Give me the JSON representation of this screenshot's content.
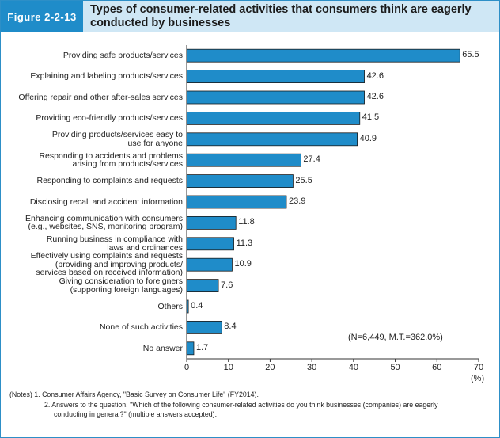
{
  "figure": {
    "label": "Figure 2-2-13",
    "title": "Types of consumer-related activities that consumers think are eagerly conducted by businesses"
  },
  "chart_data": {
    "type": "bar",
    "orientation": "horizontal",
    "categories": [
      "Providing safe products/services",
      "Explaining and labeling products/services",
      "Offering repair and other after-sales services",
      "Providing eco-friendly products/services",
      "Providing products/services easy to use for anyone",
      "Responding to accidents and problems arising from products/services",
      "Responding to complaints and requests",
      "Disclosing recall and accident information",
      "Enhancing communication with consumers (e.g., websites, SNS, monitoring program)",
      "Running business in compliance with laws and ordinances",
      "Effectively using complaints and requests (providing and improving products/services based on received information)",
      "Giving consideration to foreigners (supporting foreign languages)",
      "Others",
      "None of such activities",
      "No answer"
    ],
    "category_lines": [
      [
        "Providing safe products/services"
      ],
      [
        "Explaining and labeling products/services"
      ],
      [
        "Offering repair and other after-sales services"
      ],
      [
        "Providing eco-friendly products/services"
      ],
      [
        "Providing products/services easy to",
        "use for anyone"
      ],
      [
        "Responding to accidents and problems",
        "arising from products/services"
      ],
      [
        "Responding to complaints and requests"
      ],
      [
        "Disclosing recall and accident information"
      ],
      [
        "Enhancing communication with consumers",
        "(e.g., websites, SNS, monitoring program)"
      ],
      [
        "Running business in compliance with",
        "laws and ordinances"
      ],
      [
        "Effectively using complaints and requests",
        "(providing and improving products/",
        "services based on received information)"
      ],
      [
        "Giving consideration to foreigners",
        "(supporting foreign languages)"
      ],
      [
        "Others"
      ],
      [
        "None of such activities"
      ],
      [
        "No answer"
      ]
    ],
    "values": [
      65.5,
      42.6,
      42.6,
      41.5,
      40.9,
      27.4,
      25.5,
      23.9,
      11.8,
      11.3,
      10.9,
      7.6,
      0.4,
      8.4,
      1.7
    ],
    "value_labels": [
      "65.5",
      "42.6",
      "42.6",
      "41.5",
      "40.9",
      "27.4",
      "25.5",
      "23.9",
      "11.8",
      "11.3",
      "10.9",
      "7.6",
      "0.4",
      "8.4",
      "1.7"
    ],
    "xlim": [
      0,
      70
    ],
    "xticks": [
      0,
      10,
      20,
      30,
      40,
      50,
      60,
      70
    ],
    "xtick_labels": [
      "0",
      "10",
      "20",
      "30",
      "40",
      "50",
      "60",
      "70"
    ],
    "xlabel": "(%)",
    "annotation": "(N=6,449, M.T.=362.0%)",
    "bar_color": "#1f8cc9",
    "bar_edge_color": "#1a1a1a"
  },
  "notes": {
    "line1": "(Notes)  1. Consumer Affairs Agency, \"Basic Survey on Consumer Life\" (FY2014).",
    "line2": "2. Answers to the question, \"Which of the following consumer-related activities do you think businesses (companies) are eagerly",
    "line3": "conducting in general?\" (multiple answers accepted)."
  }
}
